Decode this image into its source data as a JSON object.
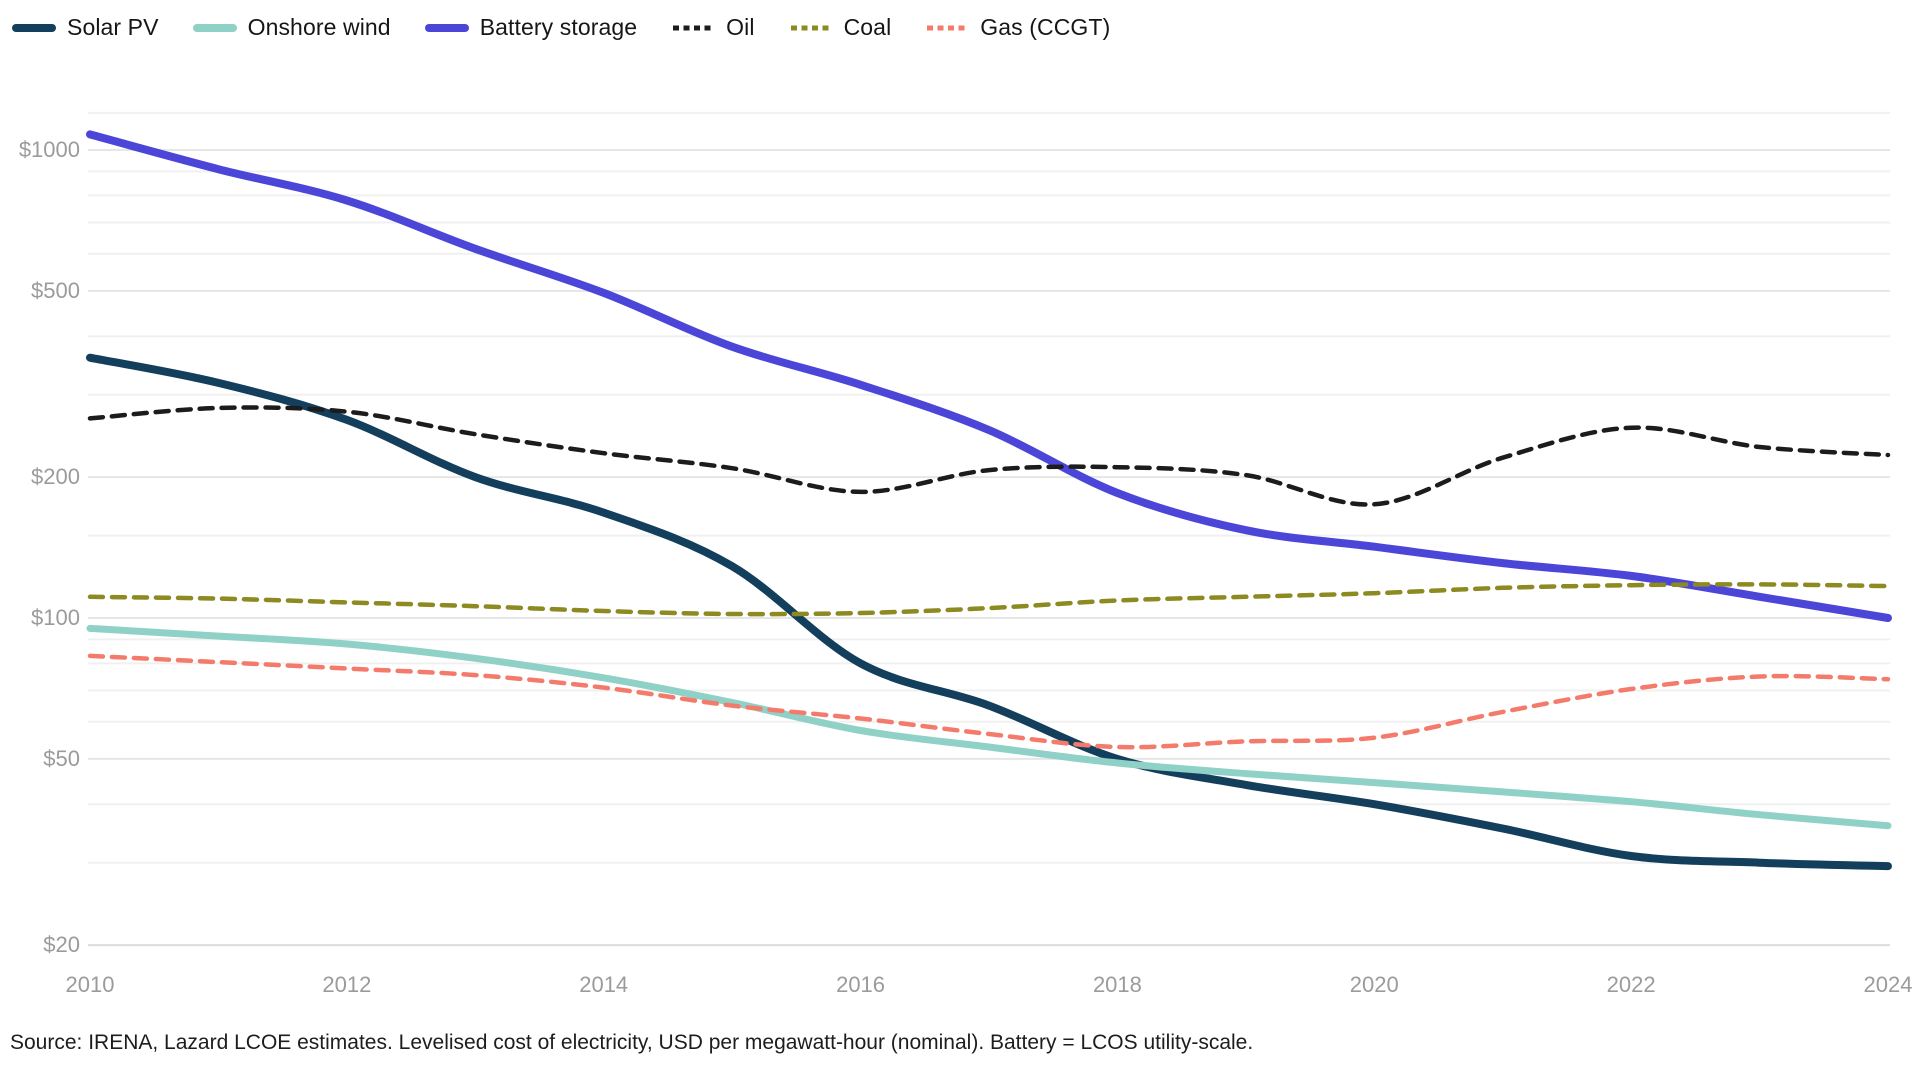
{
  "legend": {
    "items": [
      {
        "id": "solar-pv",
        "label": "Solar PV",
        "color": "#133F5C",
        "dashed": false
      },
      {
        "id": "onshore-wind",
        "label": "Onshore wind",
        "color": "#8FD1C6",
        "dashed": false
      },
      {
        "id": "battery-storage",
        "label": "Battery storage",
        "color": "#4B46D8",
        "dashed": false
      },
      {
        "id": "oil",
        "label": "Oil",
        "color": "#1C1C1C",
        "dashed": true
      },
      {
        "id": "coal",
        "label": "Coal",
        "color": "#8C8A21",
        "dashed": true
      },
      {
        "id": "gas-ccgt",
        "label": "Gas (CCGT)",
        "color": "#F47B6C",
        "dashed": true
      }
    ]
  },
  "chart_data": {
    "type": "line",
    "title": "",
    "xlabel": "",
    "ylabel": "",
    "yscale": "log",
    "ylim": [
      20,
      1200
    ],
    "xlim": [
      2010,
      2024
    ],
    "grid": true,
    "legend_position": "top-left",
    "unit": "USD per megawatt-hour",
    "x": [
      2010,
      2011,
      2012,
      2013,
      2014,
      2015,
      2016,
      2017,
      2018,
      2019,
      2020,
      2021,
      2022,
      2023,
      2024
    ],
    "x_tick_labels": [
      "2010",
      "2012",
      "2014",
      "2016",
      "2018",
      "2020",
      "2022",
      "2024"
    ],
    "y_ticks": [
      {
        "label": "$1000",
        "value": 1000
      },
      {
        "label": "$500",
        "value": 500
      },
      {
        "label": "$200",
        "value": 200
      },
      {
        "label": "$100",
        "value": 100
      },
      {
        "label": "$50",
        "value": 50
      },
      {
        "label": "$20",
        "value": 20
      }
    ],
    "minor_gridline_values": [
      30,
      40,
      60,
      70,
      80,
      90,
      150,
      300,
      400,
      600,
      700,
      800,
      900,
      1200
    ],
    "series": [
      {
        "id": "solar-pv",
        "name": "Solar PV",
        "color": "#133F5C",
        "dashed": false,
        "width": 8,
        "values": [
          360,
          318,
          265,
          200,
          168,
          129,
          80,
          65,
          50,
          44,
          40,
          35.5,
          31,
          30,
          29.5
        ]
      },
      {
        "id": "onshore-wind",
        "name": "Onshore wind",
        "color": "#8FD1C6",
        "dashed": false,
        "width": 7,
        "values": [
          95,
          91.5,
          88,
          82,
          74.5,
          66,
          57.5,
          53,
          49,
          46.5,
          44.5,
          42.5,
          40.5,
          38,
          36
        ]
      },
      {
        "id": "battery-storage",
        "name": "Battery storage",
        "color": "#4B46D8",
        "dashed": false,
        "width": 8,
        "values": [
          1080,
          910,
          780,
          615,
          495,
          380,
          315,
          252,
          185,
          154,
          142,
          131,
          123,
          111,
          100
        ]
      },
      {
        "id": "oil",
        "name": "Oil",
        "color": "#1C1C1C",
        "dashed": true,
        "width": 4.5,
        "values": [
          267,
          281,
          276,
          247,
          225,
          209,
          186,
          207,
          210,
          202,
          175,
          220,
          255,
          232,
          223
        ]
      },
      {
        "id": "coal",
        "name": "Coal",
        "color": "#8C8A21",
        "dashed": true,
        "width": 4.5,
        "values": [
          111,
          110,
          108,
          106,
          103.5,
          102,
          102.5,
          105,
          109,
          111,
          113,
          116,
          117.5,
          118,
          117
        ]
      },
      {
        "id": "gas-ccgt",
        "name": "Gas (CCGT)",
        "color": "#F47B6C",
        "dashed": true,
        "width": 4.5,
        "values": [
          83,
          80.5,
          78,
          75.5,
          71,
          65,
          61,
          56.5,
          53,
          54.5,
          55.5,
          63,
          70.5,
          75,
          74
        ]
      }
    ]
  },
  "footer": {
    "source": "Source: IRENA, Lazard LCOE estimates. Levelised cost of electricity, USD per megawatt-hour (nominal). Battery = LCOS utility-scale."
  },
  "style": {
    "gridline_minor_color": "#f0f0f0",
    "gridline_major_color": "#e6e6e6",
    "baseline_color": "#dcdcdc",
    "axis_text_color": "#9b9b9b"
  }
}
